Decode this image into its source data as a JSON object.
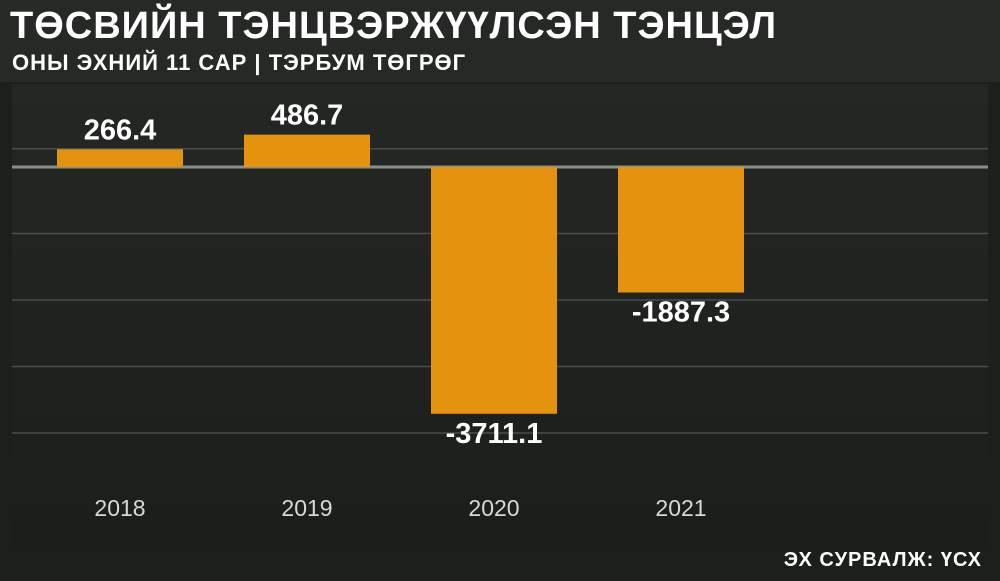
{
  "header": {
    "title": "ТӨСВИЙН ТЭНЦВЭРЖҮҮЛСЭН ТЭНЦЭЛ",
    "subtitle": "ОНЫ ЭХНИЙ 11 САР | ТЭРБУМ ТӨГРӨГ"
  },
  "footer": {
    "source": "ЭХ СУРВАЛЖ: ҮСХ"
  },
  "colors": {
    "bar": "#e5920f",
    "grid": "#4b4f4b",
    "zero_line": "#8a8f8a",
    "text": "#ffffff",
    "tick_text": "#d8d8d8"
  },
  "chart_data": {
    "type": "bar",
    "title": "ТӨСВИЙН ТЭНЦВЭРЖҮҮЛСЭН ТЭНЦЭЛ",
    "subtitle": "ОНЫ ЭХНИЙ 11 САР | ТЭРБУМ ТӨГРӨГ",
    "categories": [
      "2018",
      "2019",
      "2020",
      "2021"
    ],
    "values": [
      266.4,
      486.7,
      -3711.1,
      -1887.3
    ],
    "value_labels": [
      "266.4",
      "486.7",
      "-3711.1",
      "-1887.3"
    ],
    "ylim": [
      -4000,
      500
    ],
    "grid": true,
    "xlabel": "",
    "ylabel": ""
  }
}
